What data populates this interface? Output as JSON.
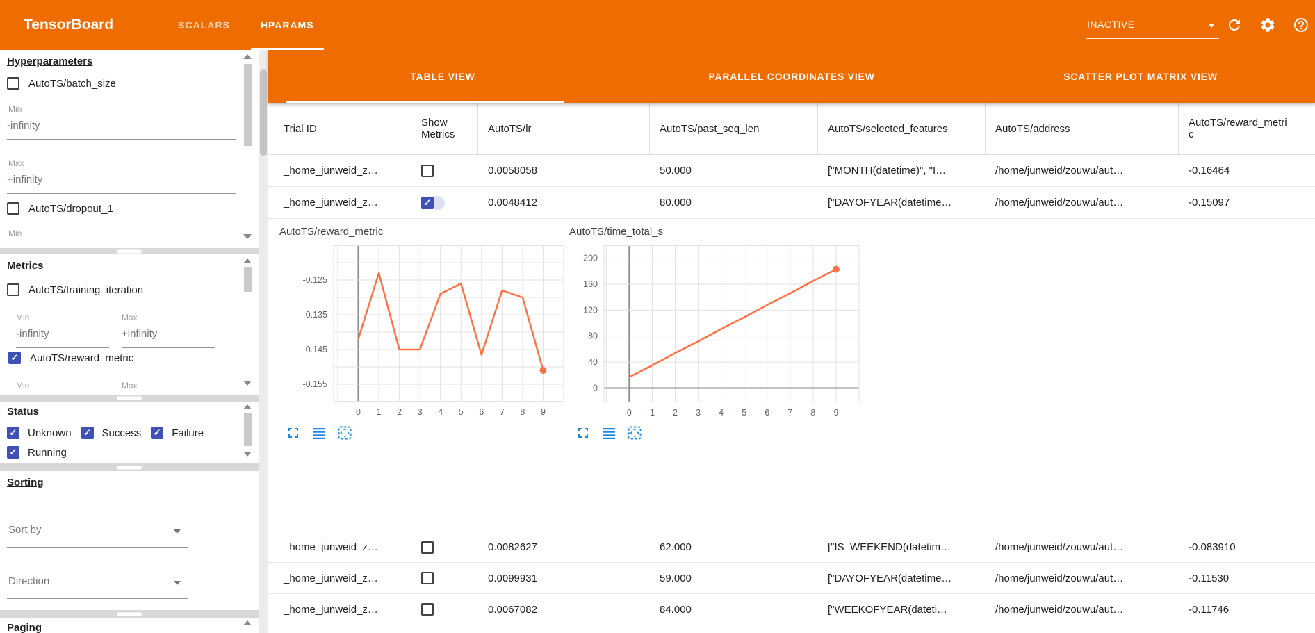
{
  "header": {
    "app_title": "TensorBoard",
    "nav_tabs": [
      {
        "label": "SCALARS",
        "active": false
      },
      {
        "label": "HPARAMS",
        "active": true
      }
    ],
    "run_selector_value": "INACTIVE"
  },
  "sidebar": {
    "hyperparameters": {
      "title": "Hyperparameters",
      "min_label": "Min",
      "max_label": "Max",
      "min_value": "-infinity",
      "max_value": "+infinity",
      "params": [
        {
          "label": "AutoTS/batch_size",
          "checked": false
        },
        {
          "label": "AutoTS/dropout_1",
          "checked": false
        }
      ]
    },
    "metrics": {
      "title": "Metrics",
      "items": [
        {
          "label": "AutoTS/training_iteration",
          "checked": false,
          "min_label": "Min",
          "max_label": "Max",
          "min_value": "-infinity",
          "max_value": "+infinity"
        },
        {
          "label": "AutoTS/reward_metric",
          "checked": true,
          "min_label": "Min",
          "max_label": "Max"
        }
      ]
    },
    "status": {
      "title": "Status",
      "options": [
        {
          "label": "Unknown",
          "checked": true
        },
        {
          "label": "Success",
          "checked": true
        },
        {
          "label": "Failure",
          "checked": true
        },
        {
          "label": "Running",
          "checked": true
        }
      ]
    },
    "sorting": {
      "title": "Sorting",
      "sort_by_placeholder": "Sort by",
      "direction_placeholder": "Direction"
    },
    "paging": {
      "title": "Paging"
    }
  },
  "main": {
    "view_tabs": [
      {
        "label": "TABLE VIEW",
        "active": true
      },
      {
        "label": "PARALLEL COORDINATES VIEW",
        "active": false
      },
      {
        "label": "SCATTER PLOT MATRIX VIEW",
        "active": false
      }
    ],
    "table": {
      "columns": [
        "Trial ID",
        "Show Metrics",
        "AutoTS/lr",
        "AutoTS/past_seq_len",
        "AutoTS/selected_features",
        "AutoTS/address",
        "AutoTS/reward_metric"
      ],
      "rows": [
        {
          "trial_id": "_home_junweid_z…",
          "show_metrics": false,
          "lr": "0.0058058",
          "past_seq_len": "50.000",
          "selected_features": "[\"MONTH(datetime)\", \"I…",
          "address": "/home/junweid/zouwu/aut…",
          "reward_metric": "-0.16464"
        },
        {
          "trial_id": "_home_junweid_z…",
          "show_metrics": true,
          "lr": "0.0048412",
          "past_seq_len": "80.000",
          "selected_features": "[\"DAYOFYEAR(datetime…",
          "address": "/home/junweid/zouwu/aut…",
          "reward_metric": "-0.15097"
        },
        {
          "trial_id": "_home_junweid_z…",
          "show_metrics": false,
          "lr": "0.0082627",
          "past_seq_len": "62.000",
          "selected_features": "[\"IS_WEEKEND(datetim…",
          "address": "/home/junweid/zouwu/aut…",
          "reward_metric": "-0.083910"
        },
        {
          "trial_id": "_home_junweid_z…",
          "show_metrics": false,
          "lr": "0.0099931",
          "past_seq_len": "59.000",
          "selected_features": "[\"DAYOFYEAR(datetime…",
          "address": "/home/junweid/zouwu/aut…",
          "reward_metric": "-0.11530"
        },
        {
          "trial_id": "_home_junweid_z…",
          "show_metrics": false,
          "lr": "0.0067082",
          "past_seq_len": "84.000",
          "selected_features": "[\"WEEKOFYEAR(dateti…",
          "address": "/home/junweid/zouwu/aut…",
          "reward_metric": "-0.11746"
        }
      ]
    }
  },
  "chart_data": [
    {
      "type": "line",
      "title": "AutoTS/reward_metric",
      "x": [
        0,
        1,
        2,
        3,
        4,
        5,
        6,
        7,
        8,
        9
      ],
      "values": [
        -0.142,
        -0.123,
        -0.145,
        -0.145,
        -0.129,
        -0.126,
        -0.1465,
        -0.128,
        -0.13,
        -0.151
      ],
      "xlim": [
        -1.2,
        10
      ],
      "ylim": [
        -0.16,
        -0.115
      ],
      "xgrid": [
        -1,
        0,
        1,
        2,
        3,
        4,
        5,
        6,
        7,
        8,
        9,
        10
      ],
      "ygrid": [
        -0.16,
        -0.155,
        -0.15,
        -0.145,
        -0.14,
        -0.135,
        -0.13,
        -0.125,
        -0.12,
        -0.115
      ],
      "xtick_values": [
        0,
        1,
        2,
        3,
        4,
        5,
        6,
        7,
        8,
        9
      ],
      "xtick_labels": [
        "0",
        "1",
        "2",
        "3",
        "4",
        "5",
        "6",
        "7",
        "8",
        "9"
      ],
      "ytick_values": [
        -0.125,
        -0.135,
        -0.145,
        -0.155
      ],
      "ytick_labels": [
        "-0.125",
        "-0.135",
        "-0.145",
        "-0.155"
      ],
      "line_color": "#ff7043",
      "grid_color": "#e2e2e2",
      "axis_color": "#8a8a8a",
      "end_marker": true,
      "dark_x_zero": true,
      "dark_y_zero": false
    },
    {
      "type": "line",
      "title": "AutoTS/time_total_s",
      "x": [
        0,
        1,
        2,
        3,
        4,
        5,
        6,
        7,
        8,
        9
      ],
      "values": [
        17,
        35,
        54,
        72,
        91,
        109,
        128,
        146,
        165,
        183
      ],
      "xlim": [
        -1.1,
        10
      ],
      "ylim": [
        -22,
        220
      ],
      "xgrid": [
        -1,
        0,
        1,
        2,
        3,
        4,
        5,
        6,
        7,
        8,
        9,
        10
      ],
      "ygrid": [
        0,
        40,
        80,
        120,
        160,
        200
      ],
      "xtick_values": [
        0,
        1,
        2,
        3,
        4,
        5,
        6,
        7,
        8,
        9
      ],
      "xtick_labels": [
        "0",
        "1",
        "2",
        "3",
        "4",
        "5",
        "6",
        "7",
        "8",
        "9"
      ],
      "ytick_values": [
        0,
        40,
        80,
        120,
        160,
        200
      ],
      "ytick_labels": [
        "0",
        "40",
        "80",
        "120",
        "160",
        "200"
      ],
      "line_color": "#ff7043",
      "grid_color": "#e2e2e2",
      "axis_color": "#8a8a8a",
      "end_marker": true,
      "dark_x_zero": true,
      "dark_y_zero": true
    }
  ]
}
